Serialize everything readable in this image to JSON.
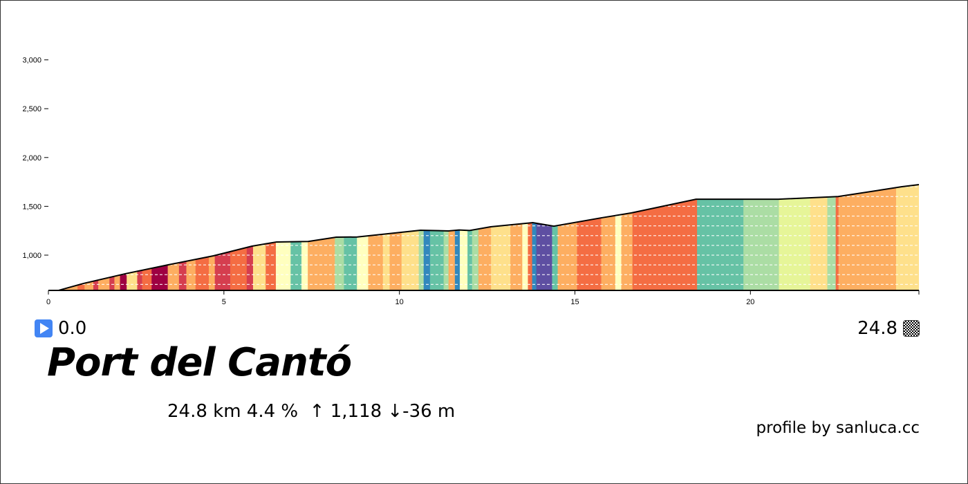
{
  "chart_data": {
    "type": "area",
    "title": "Port del Cantó",
    "xlabel": "",
    "ylabel": "",
    "xlim": [
      0,
      24.8
    ],
    "ylim": [
      640,
      3300
    ],
    "x_ticks": [
      0,
      5,
      10,
      15,
      20
    ],
    "y_ticks": [
      1000,
      1500,
      2000,
      2500,
      3000
    ],
    "y_tick_labels": [
      "1,000",
      "1,500",
      "2,000",
      "2,500",
      "3,000"
    ],
    "grid": "dashed white lines every 100 m inside profile",
    "profile": [
      [
        0.3,
        640
      ],
      [
        1.0,
        710
      ],
      [
        2.2,
        810
      ],
      [
        3.4,
        900
      ],
      [
        4.7,
        993
      ],
      [
        5.8,
        1092
      ],
      [
        6.5,
        1135
      ],
      [
        7.4,
        1140
      ],
      [
        8.2,
        1184
      ],
      [
        8.8,
        1186
      ],
      [
        10.6,
        1255
      ],
      [
        11.4,
        1248
      ],
      [
        11.7,
        1258
      ],
      [
        12.0,
        1252
      ],
      [
        12.6,
        1290
      ],
      [
        13.8,
        1333
      ],
      [
        14.4,
        1297
      ],
      [
        15.75,
        1382
      ],
      [
        16.6,
        1432
      ],
      [
        18.45,
        1573
      ],
      [
        20.8,
        1573
      ],
      [
        22.5,
        1600
      ],
      [
        24.3,
        1700
      ],
      [
        24.8,
        1722
      ]
    ],
    "gradient_segments": [
      [
        0.0,
        "#fdae61"
      ],
      [
        0.83,
        "#f46d43"
      ],
      [
        1.03,
        "#fdae61"
      ],
      [
        1.28,
        "#d53e4f"
      ],
      [
        1.42,
        "#fdae61"
      ],
      [
        1.74,
        "#d53e4f"
      ],
      [
        1.88,
        "#fdae61"
      ],
      [
        2.04,
        "#9e0142"
      ],
      [
        2.23,
        "#fee08b"
      ],
      [
        2.53,
        "#d53e4f"
      ],
      [
        2.67,
        "#f46d43"
      ],
      [
        2.94,
        "#9e0142"
      ],
      [
        3.4,
        "#fdae61"
      ],
      [
        3.72,
        "#d53e4f"
      ],
      [
        3.93,
        "#fdae61"
      ],
      [
        4.19,
        "#f46d43"
      ],
      [
        4.57,
        "#fdae61"
      ],
      [
        4.74,
        "#d53e4f"
      ],
      [
        5.18,
        "#f46d43"
      ],
      [
        5.65,
        "#d53e4f"
      ],
      [
        5.83,
        "#fee08b"
      ],
      [
        6.19,
        "#f46d43"
      ],
      [
        6.48,
        "#ffffbf"
      ],
      [
        6.9,
        "#66c2a5"
      ],
      [
        7.21,
        "#ffffbf"
      ],
      [
        7.39,
        "#fdae61"
      ],
      [
        8.16,
        "#abdda4"
      ],
      [
        8.42,
        "#66c2a5"
      ],
      [
        8.79,
        "#ffffbf"
      ],
      [
        9.11,
        "#fdae61"
      ],
      [
        9.53,
        "#fee08b"
      ],
      [
        9.72,
        "#fdae61"
      ],
      [
        10.06,
        "#fee08b"
      ],
      [
        10.55,
        "#abdda4"
      ],
      [
        10.69,
        "#3288bd"
      ],
      [
        10.87,
        "#66c2a5"
      ],
      [
        11.26,
        "#abdda4"
      ],
      [
        11.4,
        "#fdae61"
      ],
      [
        11.58,
        "#3288bd"
      ],
      [
        11.72,
        "#ffffbf"
      ],
      [
        11.94,
        "#66c2a5"
      ],
      [
        12.07,
        "#abdda4"
      ],
      [
        12.25,
        "#fdae61"
      ],
      [
        12.61,
        "#fee08b"
      ],
      [
        13.16,
        "#fdae61"
      ],
      [
        13.5,
        "#ffffbf"
      ],
      [
        13.66,
        "#f46d43"
      ],
      [
        13.78,
        "#3288bd"
      ],
      [
        13.9,
        "#5e4fa2"
      ],
      [
        14.35,
        "#66c2a5"
      ],
      [
        14.51,
        "#fdae61"
      ],
      [
        15.06,
        "#f46d43"
      ],
      [
        15.75,
        "#fdae61"
      ],
      [
        16.15,
        "#ffffbf"
      ],
      [
        16.32,
        "#fdae61"
      ],
      [
        16.64,
        "#f46d43"
      ],
      [
        18.48,
        "#66c2a5"
      ],
      [
        19.8,
        "#abdda4"
      ],
      [
        20.81,
        "#e6f598"
      ],
      [
        21.7,
        "#fee08b"
      ],
      [
        22.19,
        "#abdda4"
      ],
      [
        22.43,
        "#f46d43"
      ],
      [
        22.51,
        "#fdae61"
      ],
      [
        24.15,
        "#fee08b"
      ]
    ]
  },
  "start": {
    "label": "0.0",
    "icon": "play-icon",
    "color": "#4285f4"
  },
  "finish": {
    "label": "24.8",
    "icon": "checkered-flag-icon"
  },
  "title": "Port del Cantó",
  "stats": "24.8 km 4.4 %  ↑ 1,118 ↓-36 m",
  "credit": "profile by sanluca.cc"
}
